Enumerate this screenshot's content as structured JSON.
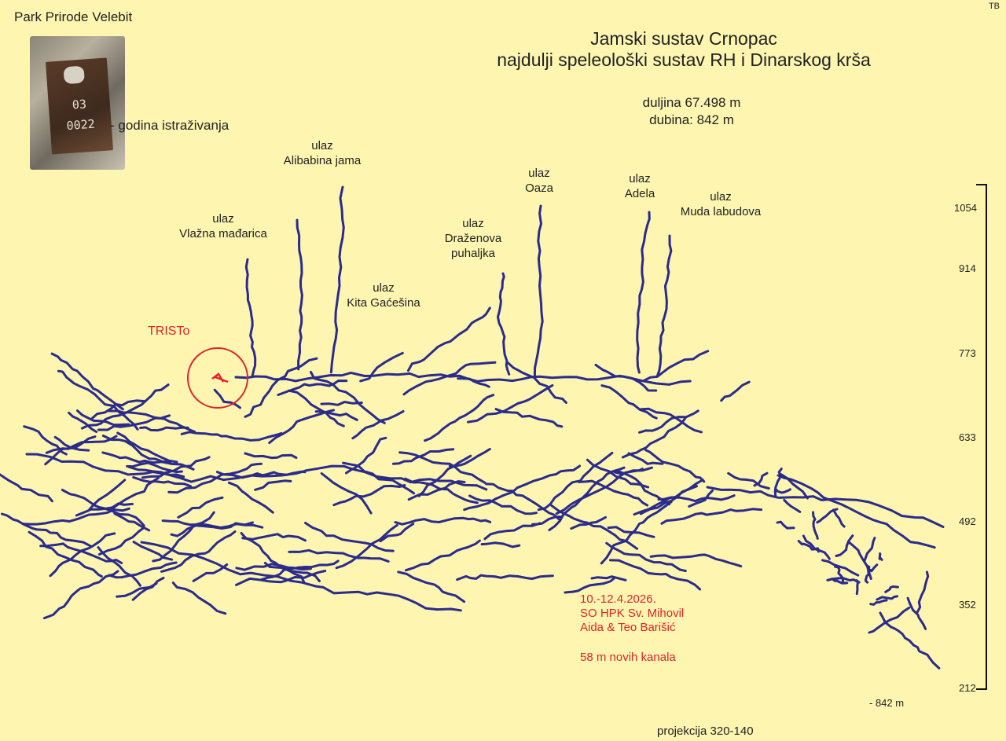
{
  "header": {
    "park_name": "Park Prirode Velebit",
    "corner_tag": "TB",
    "title_line1": "Jamski sustav Crnopac",
    "title_line2": "najdulji speleološki sustav RH i Dinarskog krša",
    "length": "duljina 67.498 m",
    "depth": "dubina: 842 m"
  },
  "photo": {
    "plate_line1": "03",
    "plate_line2": "0022",
    "caption": "- godina istraživanja"
  },
  "entrances": [
    {
      "prefix": "ulaz",
      "name": "Alibabina jama"
    },
    {
      "prefix": "ulaz",
      "name": "Vlažna mađarica"
    },
    {
      "prefix": "ulaz",
      "name": "Kita Gaćešina"
    },
    {
      "prefix": "ulaz",
      "name": "Draženova puhaljka"
    },
    {
      "prefix": "ulaz",
      "name": "Oaza"
    },
    {
      "prefix": "ulaz",
      "name": "Adela"
    },
    {
      "prefix": "ulaz",
      "name": "Muda labudova"
    }
  ],
  "marker": {
    "label": "TRISTo",
    "color": "#e0242a"
  },
  "expedition": {
    "dates": "10.-12.4.2026.",
    "club": "SO HPK Sv. Mihovil",
    "members": "Aida & Teo Barišić",
    "new_channels": "58 m novih kanala"
  },
  "scale": {
    "ticks": [
      "1054",
      "914",
      "773",
      "633",
      "492",
      "352",
      "212"
    ],
    "bottom_label": "- 842 m"
  },
  "footer": {
    "projection": "projekcija 320-140"
  },
  "colors": {
    "background": "#fdf5b0",
    "passages": "#2b2b8c",
    "highlight": "#e0242a"
  }
}
